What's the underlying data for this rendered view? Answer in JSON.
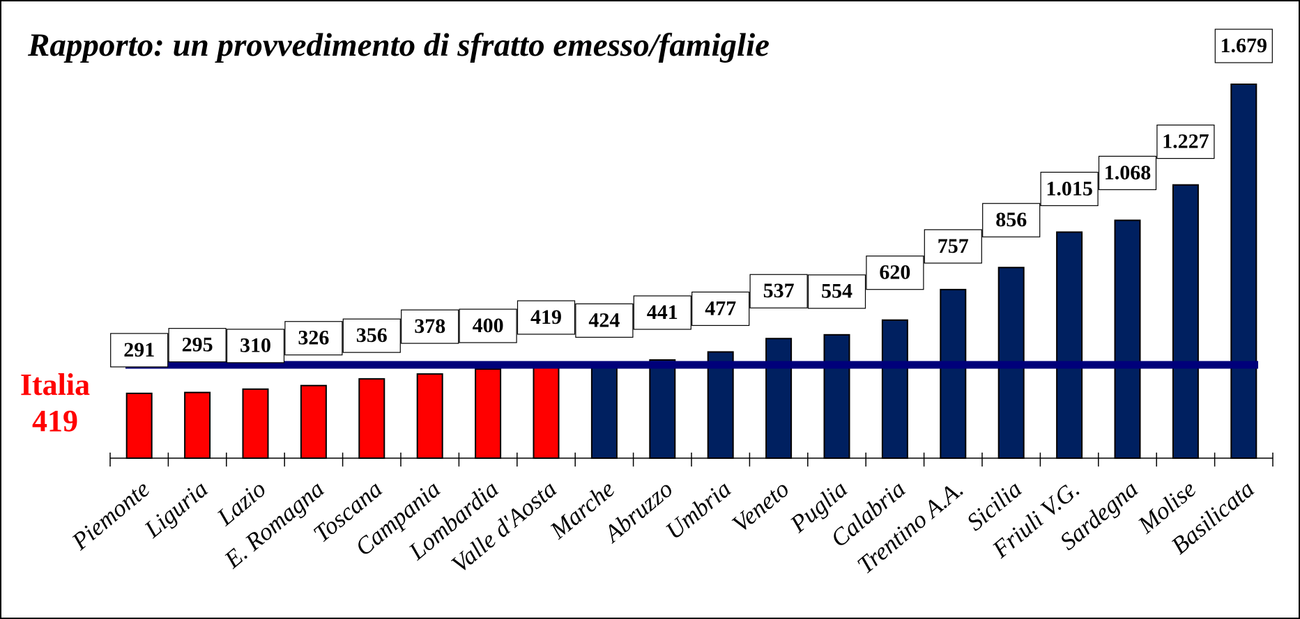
{
  "chart_data": {
    "type": "bar",
    "title": "Rapporto: un provvedimento di sfratto emesso/famiglie",
    "categories": [
      "Piemonte",
      "Liguria",
      "Lazio",
      "E. Romagna",
      "Toscana",
      "Campania",
      "Lombardia",
      "Valle d'Aosta",
      "Marche",
      "Abruzzo",
      "Umbria",
      "Veneto",
      "Puglia",
      "Calabria",
      "Trentino A.A.",
      "Sicilia",
      "Friuli V.G.",
      "Sardegna",
      "Molise",
      "Basilicata"
    ],
    "values": [
      291,
      295,
      310,
      326,
      356,
      378,
      400,
      419,
      424,
      441,
      477,
      537,
      554,
      620,
      757,
      856,
      1015,
      1068,
      1227,
      1679
    ],
    "value_labels": [
      "291",
      "295",
      "310",
      "326",
      "356",
      "378",
      "400",
      "419",
      "424",
      "441",
      "477",
      "537",
      "554",
      "620",
      "757",
      "856",
      "1.015",
      "1.068",
      "1.227",
      "1.679"
    ],
    "colors": [
      "#ff0000",
      "#ff0000",
      "#ff0000",
      "#ff0000",
      "#ff0000",
      "#ff0000",
      "#ff0000",
      "#ff0000",
      "#002060",
      "#002060",
      "#002060",
      "#002060",
      "#002060",
      "#002060",
      "#002060",
      "#002060",
      "#002060",
      "#002060",
      "#002060",
      "#002060"
    ],
    "reference": {
      "label": "Italia",
      "value": 419,
      "color": "#00007a",
      "label_color": "#ff0000"
    }
  }
}
